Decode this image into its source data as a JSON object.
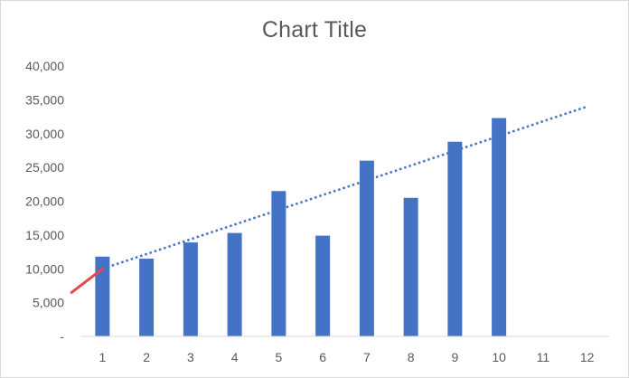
{
  "chart_data": {
    "type": "bar",
    "title": "Chart Title",
    "xlabel": "",
    "ylabel": "",
    "categories": [
      "1",
      "2",
      "3",
      "4",
      "5",
      "6",
      "7",
      "8",
      "9",
      "10",
      "11",
      "12"
    ],
    "values": [
      11800,
      11500,
      13900,
      15300,
      21500,
      14900,
      26000,
      20500,
      28800,
      32300,
      null,
      null
    ],
    "ylim": [
      0,
      40000
    ],
    "yticks": [
      "-",
      "5,000",
      "10,000",
      "15,000",
      "20,000",
      "25,000",
      "30,000",
      "35,000",
      "40,000"
    ],
    "ytick_values": [
      0,
      5000,
      10000,
      15000,
      20000,
      25000,
      30000,
      35000,
      40000
    ],
    "grid": false,
    "legend": "none",
    "trendline": {
      "type": "linear",
      "style": "dotted",
      "x_start": 1,
      "x_end": 12,
      "y_start": 10000,
      "y_end": 34000
    },
    "backcast_line": {
      "style": "solid",
      "x_start": 0.3,
      "x_end": 1,
      "y_start": 6500,
      "y_end": 10000
    },
    "colors": {
      "bars": "#4472c4",
      "trendline": "#4472c4",
      "backcast": "#e8474d",
      "axis": "#d9d9d9",
      "text": "#595959"
    }
  }
}
